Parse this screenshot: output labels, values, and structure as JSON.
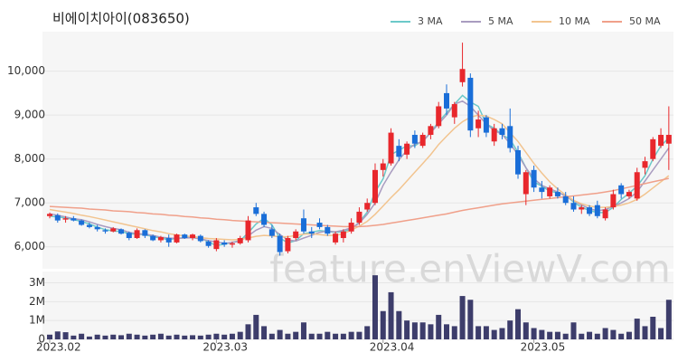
{
  "chart_data": [
    {
      "type": "candlestick",
      "title": "비에이치아이(083650)",
      "watermark": "feature.enViewV.com",
      "up_color": "#e8272c",
      "down_color": "#1a6ed8",
      "grid": true,
      "legend": "top-right",
      "ylim": [
        5500,
        10900
      ],
      "yticks": [
        {
          "value": 6000,
          "label": "6,000"
        },
        {
          "value": 7000,
          "label": "7,000"
        },
        {
          "value": 8000,
          "label": "8,000"
        },
        {
          "value": 9000,
          "label": "9,000"
        },
        {
          "value": 10000,
          "label": "10,000"
        }
      ],
      "open": [
        6700,
        6720,
        6620,
        6650,
        6600,
        6500,
        6450,
        6380,
        6350,
        6400,
        6320,
        6200,
        6380,
        6250,
        6150,
        6200,
        6100,
        6280,
        6200,
        6250,
        6120,
        5950,
        6100,
        6050,
        6080,
        6150,
        6900,
        6750,
        6400,
        6250,
        5900,
        6200,
        6650,
        6350,
        6550,
        6450,
        6100,
        6200,
        6350,
        6550,
        6850,
        7000,
        7750,
        7900,
        8300,
        8100,
        8550,
        8300,
        8550,
        8750,
        9500,
        8950,
        9750,
        9850,
        8700,
        8950,
        8400,
        8700,
        8750,
        8200,
        7200,
        7750,
        7350,
        7150,
        7250,
        7150,
        7000,
        6850,
        6900,
        6950,
        6650,
        6900,
        7400,
        7150,
        7100,
        7800,
        8000,
        8300,
        8350
      ],
      "high": [
        6780,
        6760,
        6700,
        6700,
        6620,
        6550,
        6500,
        6420,
        6450,
        6420,
        6350,
        6420,
        6400,
        6280,
        6250,
        6280,
        6300,
        6300,
        6300,
        6280,
        6150,
        6200,
        6150,
        6120,
        6250,
        6700,
        7000,
        6800,
        6500,
        6300,
        6250,
        6400,
        6850,
        6450,
        6650,
        6500,
        6350,
        6400,
        6650,
        6900,
        7100,
        7900,
        8000,
        8700,
        8450,
        8400,
        8650,
        8600,
        8800,
        9300,
        9700,
        9300,
        10650,
        9950,
        9100,
        9000,
        8800,
        8800,
        9150,
        8300,
        7750,
        7850,
        7500,
        7400,
        7350,
        7250,
        7150,
        6950,
        6950,
        7050,
        6900,
        7300,
        7450,
        7300,
        7800,
        8050,
        8500,
        8700,
        9200
      ],
      "low": [
        6650,
        6550,
        6550,
        6580,
        6480,
        6420,
        6350,
        6300,
        6330,
        6280,
        6150,
        6180,
        6200,
        6130,
        6100,
        6000,
        6080,
        6180,
        6150,
        6100,
        5980,
        5900,
        6000,
        5980,
        6050,
        6100,
        6700,
        6450,
        6200,
        5800,
        5850,
        6150,
        6300,
        6200,
        6400,
        6250,
        6050,
        6100,
        6300,
        6500,
        6800,
        6950,
        7600,
        7850,
        7950,
        8000,
        8250,
        8250,
        8450,
        8700,
        9000,
        8800,
        9650,
        8500,
        8500,
        8500,
        8300,
        8450,
        8150,
        7550,
        6950,
        7250,
        7100,
        7100,
        7100,
        6950,
        6800,
        6750,
        6700,
        6650,
        6600,
        6850,
        7100,
        7100,
        7050,
        7650,
        7950,
        8250,
        7750
      ],
      "close": [
        6750,
        6600,
        6650,
        6600,
        6500,
        6450,
        6400,
        6350,
        6420,
        6300,
        6200,
        6380,
        6250,
        6150,
        6220,
        6100,
        6280,
        6200,
        6280,
        6130,
        6020,
        6150,
        6050,
        6080,
        6200,
        6600,
        6750,
        6500,
        6250,
        5880,
        6200,
        6350,
        6350,
        6300,
        6450,
        6300,
        6300,
        6350,
        6550,
        6800,
        7000,
        7750,
        7900,
        8600,
        8050,
        8350,
        8350,
        8550,
        8750,
        9200,
        9150,
        9250,
        10050,
        8650,
        8900,
        8600,
        8700,
        8550,
        8250,
        7650,
        7700,
        7350,
        7250,
        7350,
        7150,
        7000,
        6850,
        6900,
        6750,
        6700,
        6850,
        7200,
        7200,
        7250,
        7700,
        7950,
        8450,
        8550,
        8550
      ],
      "series": [
        {
          "name": "3 MA",
          "color": "#6cc9c9",
          "values": [
            6700,
            6680,
            6660,
            6620,
            6580,
            6520,
            6450,
            6390,
            6360,
            6350,
            6300,
            6290,
            6280,
            6230,
            6200,
            6160,
            6200,
            6200,
            6240,
            6200,
            6110,
            6030,
            6060,
            6100,
            6140,
            6320,
            6520,
            6650,
            6500,
            6200,
            6090,
            6140,
            6300,
            6330,
            6370,
            6350,
            6330,
            6350,
            6400,
            6560,
            6790,
            7250,
            7550,
            8100,
            8200,
            8300,
            8300,
            8420,
            8600,
            8850,
            9050,
            9250,
            9450,
            9300,
            9200,
            8800,
            8700,
            8550,
            8450,
            8150,
            7800,
            7480,
            7380,
            7270,
            7230,
            7180,
            7020,
            6900,
            6830,
            6780,
            6780,
            6900,
            7080,
            7220,
            7380,
            7620,
            8000,
            8300,
            8480
          ]
        },
        {
          "name": "5 MA",
          "color": "#a99cc0",
          "values": [
            6750,
            6720,
            6680,
            6640,
            6620,
            6570,
            6510,
            6460,
            6420,
            6390,
            6330,
            6300,
            6290,
            6260,
            6220,
            6200,
            6190,
            6200,
            6210,
            6180,
            6140,
            6110,
            6080,
            6100,
            6130,
            6250,
            6380,
            6460,
            6420,
            6280,
            6160,
            6130,
            6200,
            6260,
            6330,
            6360,
            6340,
            6380,
            6430,
            6540,
            6740,
            7000,
            7400,
            7700,
            7980,
            8200,
            8340,
            8400,
            8600,
            8800,
            9000,
            9250,
            9320,
            9200,
            9000,
            8800,
            8650,
            8560,
            8350,
            8100,
            7800,
            7550,
            7400,
            7320,
            7250,
            7150,
            7050,
            6950,
            6870,
            6820,
            6850,
            6920,
            7000,
            7100,
            7250,
            7500,
            7750,
            8000,
            8250
          ]
        },
        {
          "name": "10 MA",
          "color": "#f2c48f",
          "values": [
            6850,
            6820,
            6790,
            6760,
            6720,
            6690,
            6650,
            6610,
            6570,
            6530,
            6490,
            6450,
            6410,
            6370,
            6340,
            6300,
            6270,
            6250,
            6230,
            6210,
            6190,
            6180,
            6170,
            6160,
            6170,
            6200,
            6240,
            6260,
            6250,
            6230,
            6230,
            6260,
            6290,
            6300,
            6280,
            6260,
            6260,
            6300,
            6380,
            6470,
            6580,
            6740,
            6930,
            7120,
            7300,
            7500,
            7700,
            7900,
            8100,
            8330,
            8520,
            8700,
            8850,
            8950,
            9000,
            8980,
            8900,
            8800,
            8600,
            8400,
            8150,
            7900,
            7680,
            7480,
            7320,
            7180,
            7060,
            6980,
            6930,
            6900,
            6900,
            6920,
            6950,
            7000,
            7080,
            7200,
            7340,
            7480,
            7620
          ]
        },
        {
          "name": "50 MA",
          "color": "#f0a08a",
          "values": [
            6920,
            6910,
            6900,
            6890,
            6880,
            6860,
            6850,
            6840,
            6820,
            6810,
            6800,
            6780,
            6770,
            6750,
            6740,
            6720,
            6710,
            6690,
            6680,
            6660,
            6650,
            6630,
            6620,
            6600,
            6590,
            6580,
            6570,
            6560,
            6550,
            6540,
            6530,
            6520,
            6510,
            6500,
            6490,
            6480,
            6470,
            6460,
            6460,
            6460,
            6470,
            6490,
            6510,
            6540,
            6570,
            6600,
            6630,
            6660,
            6690,
            6720,
            6750,
            6790,
            6830,
            6860,
            6890,
            6920,
            6950,
            6980,
            7000,
            7020,
            7040,
            7060,
            7080,
            7100,
            7120,
            7140,
            7160,
            7180,
            7200,
            7220,
            7250,
            7280,
            7320,
            7360,
            7400,
            7440,
            7480,
            7520,
            7560
          ]
        }
      ]
    },
    {
      "type": "bar",
      "color": "#3d3d6b",
      "ylim": [
        0,
        3600000
      ],
      "yticks": [
        0,
        {
          "value": 1000000,
          "label": "1M"
        },
        {
          "value": 2000000,
          "label": "2M"
        },
        {
          "value": 3000000,
          "label": "3M"
        }
      ],
      "categories": [
        "2023.02",
        null,
        null,
        null,
        null,
        null,
        null,
        null,
        null,
        null,
        null,
        null,
        null,
        null,
        null,
        null,
        null,
        null,
        null,
        null,
        null,
        "2023.03",
        null,
        null,
        null,
        null,
        null,
        null,
        null,
        null,
        null,
        null,
        null,
        null,
        null,
        null,
        null,
        null,
        null,
        null,
        null,
        null,
        "2023.04",
        null,
        null,
        null,
        null,
        null,
        null,
        null,
        null,
        null,
        null,
        null,
        null,
        null,
        null,
        null,
        null,
        null,
        null,
        "2023.05",
        null,
        null,
        null,
        null,
        null,
        null,
        null,
        null,
        null,
        null,
        null,
        null,
        null,
        null,
        null,
        null,
        null
      ],
      "values": [
        250000,
        420000,
        380000,
        200000,
        300000,
        150000,
        250000,
        200000,
        250000,
        220000,
        300000,
        250000,
        200000,
        250000,
        300000,
        200000,
        250000,
        200000,
        220000,
        200000,
        250000,
        300000,
        250000,
        300000,
        400000,
        800000,
        1300000,
        700000,
        300000,
        500000,
        300000,
        400000,
        900000,
        300000,
        300000,
        400000,
        300000,
        300000,
        400000,
        400000,
        700000,
        3400000,
        1500000,
        2500000,
        1500000,
        1000000,
        900000,
        900000,
        800000,
        1300000,
        800000,
        700000,
        2300000,
        2100000,
        700000,
        700000,
        500000,
        600000,
        1000000,
        1600000,
        900000,
        600000,
        500000,
        400000,
        400000,
        300000,
        900000,
        300000,
        400000,
        300000,
        600000,
        500000,
        300000,
        400000,
        1100000,
        700000,
        1200000,
        600000,
        2100000
      ]
    }
  ]
}
